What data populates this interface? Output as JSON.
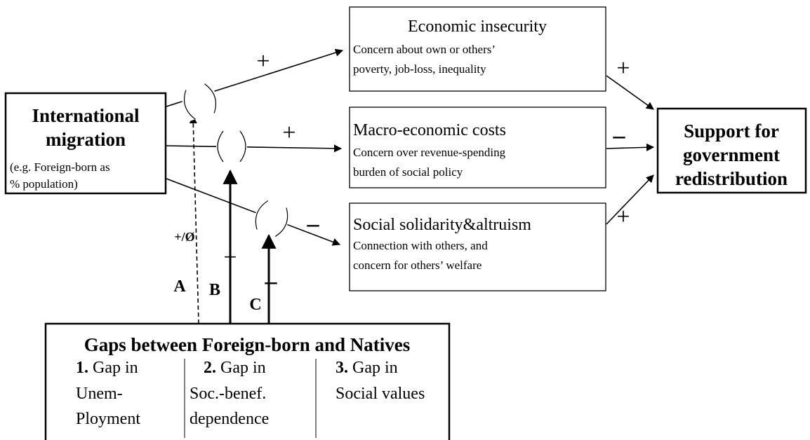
{
  "nodes": {
    "migration": {
      "title_lines": [
        "International",
        "migration"
      ],
      "note_lines": [
        "(e.g. Foreign-born as",
        "% population)"
      ]
    },
    "economic": {
      "title": "Economic insecurity",
      "description_lines": [
        "Concern about own or others’",
        "poverty, job-loss, inequality"
      ]
    },
    "macro": {
      "title": "Macro-economic costs",
      "description_lines": [
        "Concern over revenue-spending",
        "burden of social policy"
      ]
    },
    "social": {
      "title": "Social solidarity&altruism",
      "description_lines": [
        "Connection with others, and",
        "concern for others’ welfare"
      ]
    },
    "support": {
      "title_lines": [
        "Support for",
        "government",
        "redistribution"
      ]
    }
  },
  "edge_labels": {
    "migration_economic": "+",
    "migration_macro": "+",
    "migration_social": "–",
    "economic_support": "+",
    "macro_support": "–",
    "social_support": "+",
    "moderator_a": {
      "name": "A",
      "sign": "+/Ø"
    },
    "moderator_b": {
      "name": "B",
      "sign": "+"
    },
    "moderator_c": {
      "name": "C",
      "sign": "–"
    }
  },
  "gaps": {
    "title": "Gaps between Foreign-born and Natives",
    "columns": [
      {
        "number": "1.",
        "lines": [
          "Gap in",
          "Unem-",
          "Ployment"
        ]
      },
      {
        "number": "2.",
        "lines": [
          "Gap in",
          "Soc.-benef.",
          "dependence"
        ]
      },
      {
        "number": "3.",
        "lines": [
          "Gap in",
          "Social values"
        ]
      }
    ]
  }
}
